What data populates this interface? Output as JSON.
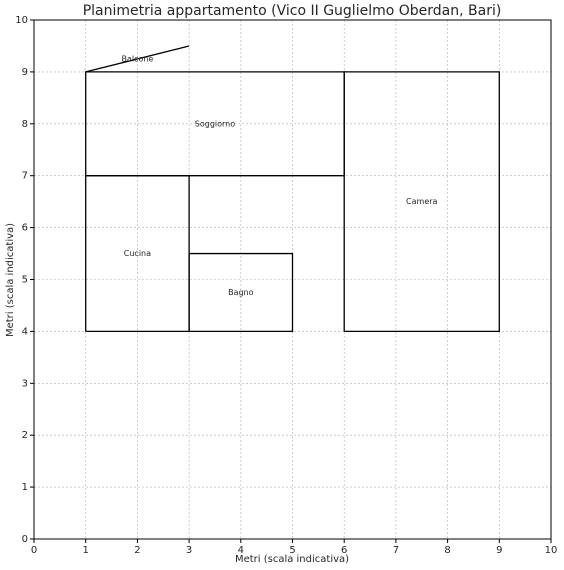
{
  "chart_data": {
    "type": "floorplan",
    "title": "Planimetria appartamento (Vico II Guglielmo Oberdan, Bari)",
    "x_label": "Metri (scala indicativa)",
    "y_label": "Metri (scala indicativa)",
    "xlim": [
      0,
      10
    ],
    "ylim": [
      0,
      10
    ],
    "xticks": [
      0,
      1,
      2,
      3,
      4,
      5,
      6,
      7,
      8,
      9,
      10
    ],
    "yticks": [
      0,
      1,
      2,
      3,
      4,
      5,
      6,
      7,
      8,
      9,
      10
    ],
    "grid": true,
    "color": "#000000",
    "shapes": [
      {
        "label": "Soggiorno",
        "x": [
          1,
          6,
          6,
          1,
          1
        ],
        "y": [
          7,
          7,
          9,
          9,
          7
        ],
        "label_x": 3.5,
        "label_y": 8
      },
      {
        "label": "Cucina",
        "x": [
          1,
          3,
          3,
          1,
          1
        ],
        "y": [
          4,
          4,
          7,
          7,
          4
        ],
        "label_x": 2,
        "label_y": 5.5
      },
      {
        "label": "Bagno",
        "x": [
          3,
          5,
          5,
          3,
          3
        ],
        "y": [
          4,
          4,
          5.5,
          5.5,
          4
        ],
        "label_x": 4,
        "label_y": 4.75
      },
      {
        "label": "Camera",
        "x": [
          6,
          9,
          9,
          6,
          6
        ],
        "y": [
          4,
          4,
          9,
          9,
          4
        ],
        "label_x": 7.5,
        "label_y": 6.5
      },
      {
        "label": "Balcone",
        "x": [
          1,
          3
        ],
        "y": [
          9,
          9.5
        ],
        "label_x": 2,
        "label_y": 9.25
      }
    ]
  }
}
